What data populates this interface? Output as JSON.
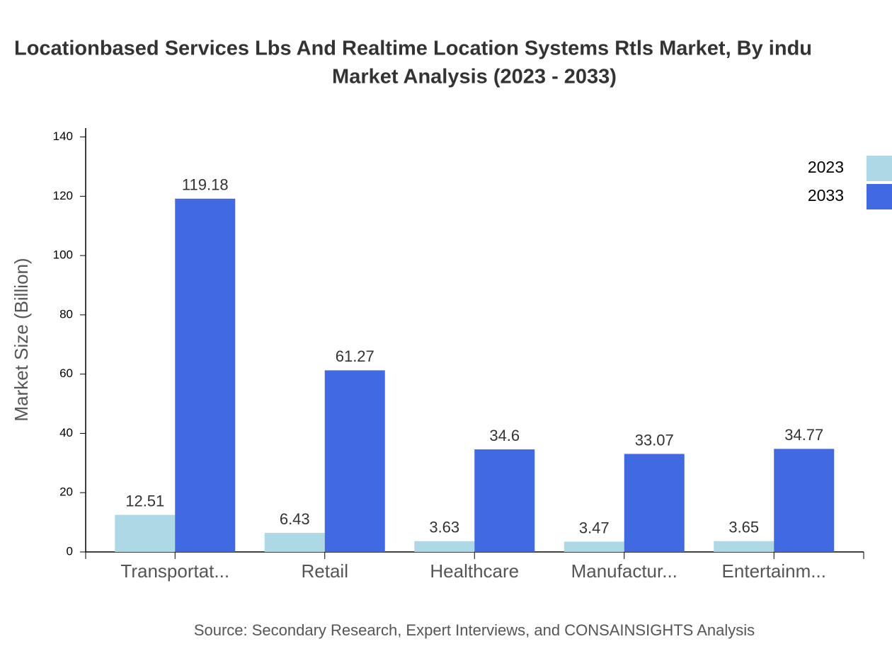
{
  "chart_data": {
    "type": "bar",
    "title_lines": [
      "Locationbased Services Lbs And Realtime Location Systems Rtls Market, By indu",
      "Market Analysis (2023 - 2033)"
    ],
    "y_label": "Market Size (Billion)",
    "source": "Source: Secondary Research, Expert Interviews, and CONSAINSIGHTS Analysis",
    "categories": [
      "Transportat...",
      "Retail",
      "Healthcare",
      "Manufactur...",
      "Entertainm..."
    ],
    "series": [
      {
        "name": "2023",
        "color": "#add8e6",
        "values": [
          12.51,
          6.43,
          3.63,
          3.47,
          3.65
        ]
      },
      {
        "name": "2033",
        "color": "#4169e1",
        "values": [
          119.18,
          61.27,
          34.6,
          33.07,
          34.77
        ]
      }
    ],
    "ylim": [
      0,
      143
    ],
    "yticks": [
      0,
      20,
      40,
      60,
      80,
      100,
      120,
      140
    ],
    "grid": false,
    "legend": "top-right"
  }
}
